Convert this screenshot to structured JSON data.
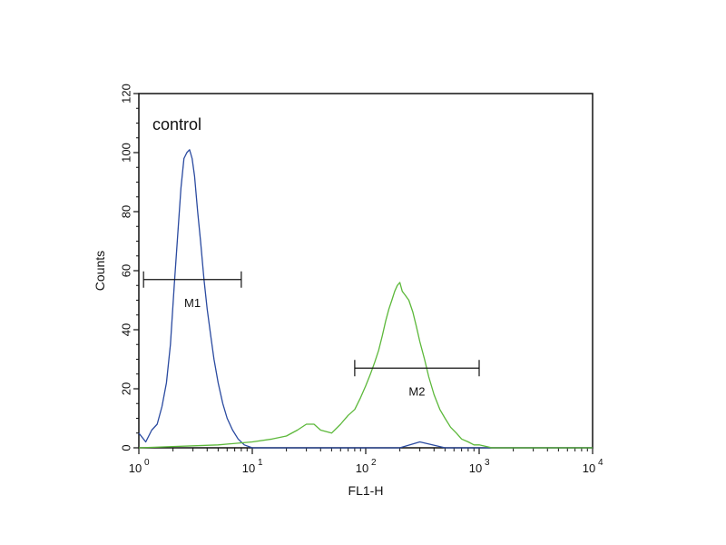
{
  "chart_data": {
    "type": "line",
    "xlabel": "FL1-H",
    "ylabel": "Counts",
    "xscale": "log",
    "xlim": [
      1,
      10000
    ],
    "ylim": [
      0,
      120
    ],
    "x_ticks": [
      {
        "value": 1,
        "base": "10",
        "exp": "0"
      },
      {
        "value": 10,
        "base": "10",
        "exp": "1"
      },
      {
        "value": 100,
        "base": "10",
        "exp": "2"
      },
      {
        "value": 1000,
        "base": "10",
        "exp": "3"
      },
      {
        "value": 10000,
        "base": "10",
        "exp": "4"
      }
    ],
    "y_ticks": [
      0,
      20,
      40,
      60,
      80,
      100,
      120
    ],
    "annotation": "control",
    "series": [
      {
        "color": "#2a4aa0",
        "x": [
          1.0,
          1.15,
          1.3,
          1.45,
          1.6,
          1.75,
          1.9,
          2.05,
          2.2,
          2.35,
          2.5,
          2.65,
          2.8,
          2.95,
          3.1,
          3.3,
          3.5,
          3.75,
          4.0,
          4.3,
          4.6,
          5.0,
          5.5,
          6.0,
          6.7,
          7.5,
          8.5,
          10,
          20,
          50,
          100,
          200,
          300,
          500,
          1000,
          10000
        ],
        "y": [
          5,
          2,
          6,
          8,
          14,
          22,
          35,
          55,
          72,
          88,
          98,
          100,
          101,
          98,
          92,
          80,
          70,
          57,
          47,
          38,
          30,
          22,
          15,
          10,
          6,
          3,
          1,
          0,
          0,
          0,
          0,
          0,
          2,
          0,
          0,
          0
        ]
      },
      {
        "color": "#5cb83a",
        "x": [
          1,
          5,
          10,
          15,
          20,
          25,
          30,
          35,
          40,
          50,
          60,
          70,
          80,
          90,
          100,
          110,
          120,
          130,
          140,
          150,
          160,
          170,
          180,
          190,
          200,
          210,
          220,
          240,
          260,
          280,
          300,
          330,
          360,
          400,
          450,
          500,
          560,
          630,
          700,
          800,
          900,
          1000,
          1300,
          2000,
          10000
        ],
        "y": [
          0,
          1,
          2,
          3,
          4,
          6,
          8,
          8,
          6,
          5,
          8,
          11,
          13,
          17,
          21,
          25,
          29,
          33,
          38,
          43,
          47,
          50,
          53,
          55,
          56,
          53,
          52,
          50,
          46,
          41,
          36,
          30,
          24,
          18,
          13,
          10,
          7,
          5,
          3,
          2,
          1,
          1,
          0,
          0,
          0
        ]
      }
    ],
    "markers": [
      {
        "label": "M1",
        "x_start": 1.1,
        "x_end": 8,
        "y": 57
      },
      {
        "label": "M2",
        "x_start": 80,
        "x_end": 1000,
        "y": 27
      }
    ]
  }
}
